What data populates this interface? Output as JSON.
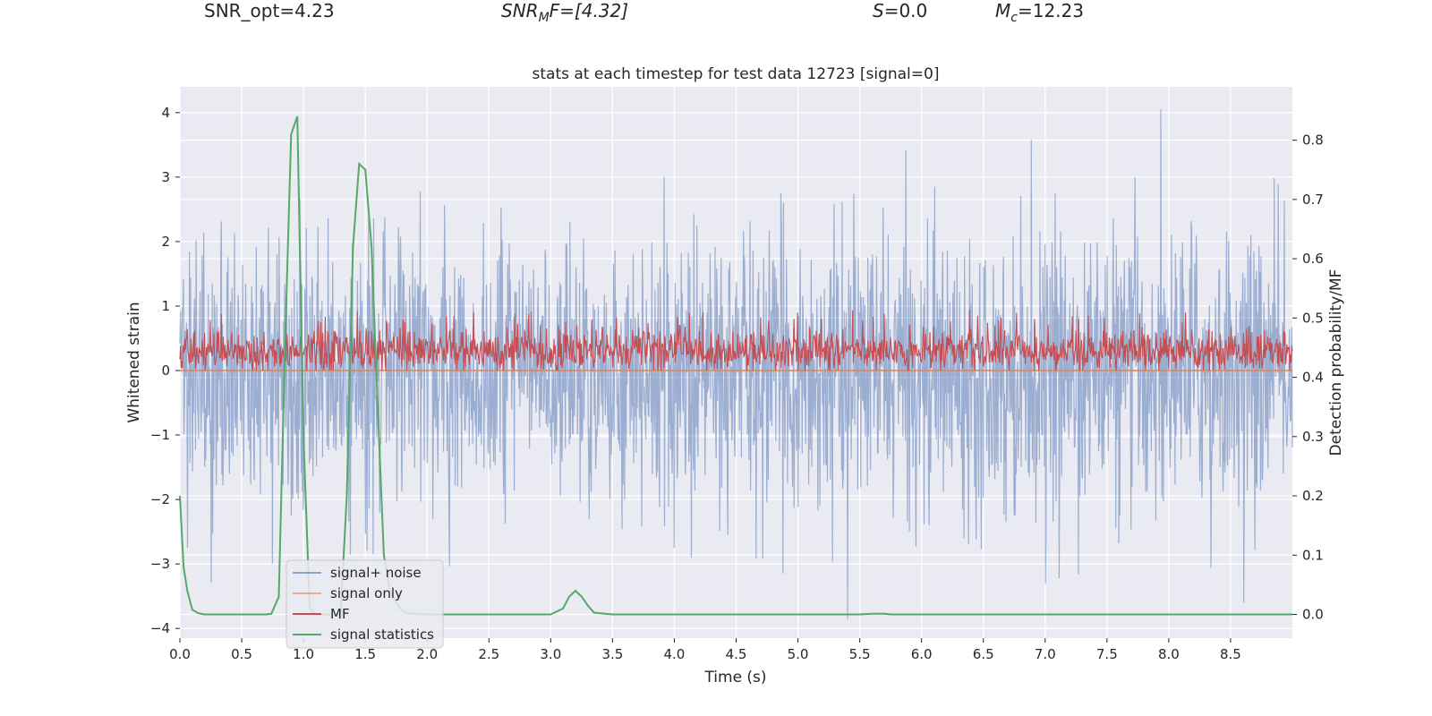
{
  "header": {
    "snr_opt": "SNR_opt=4.23",
    "snr_mf_main": "SNR",
    "snr_mf_sub": "M",
    "snr_mf_rest": "F=[4.32]",
    "s_sym": "S",
    "s_rest": "=0.0",
    "mc_sym": "M",
    "mc_sub": "c",
    "mc_rest": "=12.23"
  },
  "chart_data": {
    "type": "line",
    "title": "stats at each timestep for test data 12723 [signal=0]",
    "xlabel": "Time (s)",
    "ylabel": "Whitened strain",
    "y2label": "Detection probability/MF",
    "xlim": [
      0.0,
      9.0
    ],
    "ylim": [
      -4.15,
      4.4
    ],
    "y2lim": [
      -0.04,
      0.89
    ],
    "xticks": [
      0.0,
      0.5,
      1.0,
      1.5,
      2.0,
      2.5,
      3.0,
      3.5,
      4.0,
      4.5,
      5.0,
      5.5,
      6.0,
      6.5,
      7.0,
      7.5,
      8.0,
      8.5
    ],
    "xtick_labels": [
      "0.0",
      "0.5",
      "1.0",
      "1.5",
      "2.0",
      "2.5",
      "3.0",
      "3.5",
      "4.0",
      "4.5",
      "5.0",
      "5.5",
      "6.0",
      "6.5",
      "7.0",
      "7.5",
      "8.0",
      "8.5"
    ],
    "yticks": [
      4,
      3,
      2,
      1,
      0,
      -1,
      -2,
      -3,
      -4
    ],
    "ytick_labels": [
      "4",
      "3",
      "2",
      "1",
      "0",
      "−1",
      "−2",
      "−3",
      "−4"
    ],
    "y2ticks": [
      0.8,
      0.7,
      0.6,
      0.5,
      0.4,
      0.3,
      0.2,
      0.1,
      0.0
    ],
    "y2tick_labels": [
      "0.8",
      "0.7",
      "0.6",
      "0.5",
      "0.4",
      "0.3",
      "0.2",
      "0.1",
      "0.0"
    ],
    "grid": true,
    "legend_position": "lower-left",
    "series": [
      {
        "name": "signal+ noise",
        "color": "#4c72b0",
        "axis": "left",
        "description": "dense whitened noise between about -2.3 and 2.3, spikes up to 4.0 and down to -3.8"
      },
      {
        "name": "signal only",
        "color": "#dd8452",
        "axis": "left",
        "description": "flat at 0 (no signal)"
      },
      {
        "name": "MF",
        "color": "#c44e52",
        "axis": "left",
        "description": "noisy band between about 0.0 and 0.8"
      },
      {
        "name": "signal statistics",
        "color": "#55a868",
        "axis": "right",
        "x": [
          0.0,
          0.03,
          0.06,
          0.1,
          0.15,
          0.2,
          0.3,
          0.4,
          0.5,
          0.6,
          0.7,
          0.74,
          0.8,
          0.85,
          0.9,
          0.95,
          1.0,
          1.05,
          1.1,
          1.2,
          1.3,
          1.35,
          1.4,
          1.45,
          1.5,
          1.55,
          1.6,
          1.65,
          1.7,
          1.75,
          1.8,
          1.85,
          1.9,
          2.0,
          2.5,
          3.0,
          3.1,
          3.15,
          3.2,
          3.25,
          3.3,
          3.35,
          3.5,
          4.0,
          4.5,
          5.0,
          5.5,
          5.6,
          5.7,
          5.75,
          5.9,
          6.0,
          6.5,
          7.0,
          7.5,
          8.0,
          8.5,
          9.0
        ],
        "y": [
          0.2,
          0.08,
          0.04,
          0.008,
          0.002,
          0.0,
          0.0,
          0.0,
          0.0,
          0.0,
          0.0,
          0.001,
          0.03,
          0.45,
          0.81,
          0.84,
          0.3,
          0.01,
          0.0,
          0.0,
          0.0,
          0.2,
          0.62,
          0.76,
          0.75,
          0.62,
          0.35,
          0.1,
          0.04,
          0.02,
          0.006,
          0.002,
          0.001,
          0.0,
          0.0,
          0.0,
          0.01,
          0.03,
          0.04,
          0.03,
          0.015,
          0.003,
          0.0,
          0.0,
          0.0,
          0.0,
          0.0,
          0.001,
          0.001,
          0.0,
          0.0,
          0.0,
          0.0,
          0.0,
          0.0,
          0.0,
          0.0,
          0.0
        ]
      }
    ]
  },
  "colors": {
    "plot_bg": "#eaeaf2",
    "grid": "#ffffff",
    "noise": "#4c72b0",
    "signal_only": "#dd8452",
    "mf": "#c44e52",
    "stats": "#55a868"
  }
}
